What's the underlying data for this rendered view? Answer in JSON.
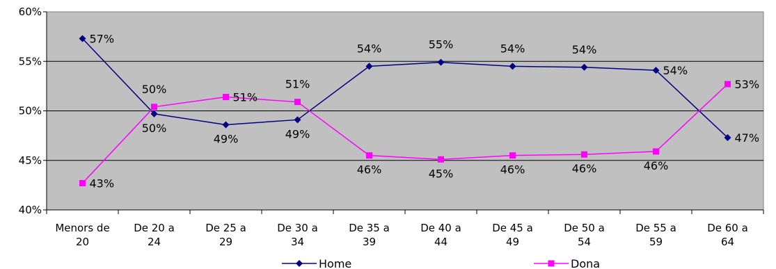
{
  "chart_data": {
    "type": "line",
    "title": "",
    "xlabel": "",
    "ylabel": "",
    "categories": [
      [
        "Menors de",
        "20"
      ],
      [
        "De 20 a",
        "24"
      ],
      [
        "De 25 a",
        "29"
      ],
      [
        "De 30 a",
        "34"
      ],
      [
        "De 35 a",
        "39"
      ],
      [
        "De 40 a",
        "44"
      ],
      [
        "De 45 a",
        "49"
      ],
      [
        "De 50 a",
        "54"
      ],
      [
        "De 55 a",
        "59"
      ],
      [
        "De 60 a",
        "64"
      ]
    ],
    "y_ticks": [
      "40%",
      "45%",
      "50%",
      "55%",
      "60%"
    ],
    "ylim": [
      40,
      60
    ],
    "grid": true,
    "legend_position": "bottom",
    "series": [
      {
        "name": "Home",
        "color": "#000080",
        "marker": "diamond",
        "values": [
          57.3,
          49.7,
          48.6,
          49.1,
          54.5,
          54.9,
          54.5,
          54.4,
          54.1,
          47.3
        ],
        "labels": [
          "57%",
          "50%",
          "49%",
          "49%",
          "54%",
          "55%",
          "54%",
          "54%",
          "54%",
          "47%"
        ]
      },
      {
        "name": "Dona",
        "color": "#FF00FF",
        "marker": "square",
        "values": [
          42.7,
          50.4,
          51.4,
          50.9,
          45.5,
          45.1,
          45.5,
          45.6,
          45.9,
          52.7
        ],
        "labels": [
          "43%",
          "50%",
          "51%",
          "51%",
          "46%",
          "45%",
          "46%",
          "46%",
          "46%",
          "53%"
        ]
      }
    ],
    "plot_background": "#C0C0C0"
  }
}
